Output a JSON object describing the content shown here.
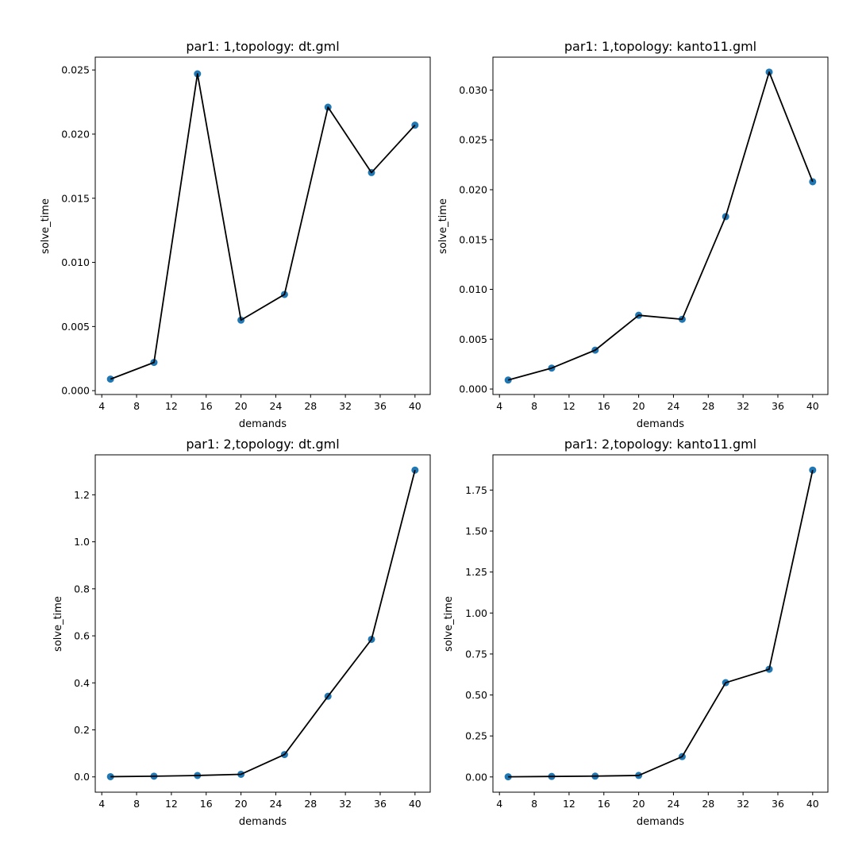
{
  "colors": {
    "line": "#000000",
    "marker": "#1f77b4",
    "frame": "#000000",
    "background": "#ffffff"
  },
  "chart_data": [
    {
      "type": "line",
      "title": "par1: 1,topology: dt.gml",
      "xlabel": "demands",
      "ylabel": "solve_time",
      "grid": false,
      "x": [
        5,
        10,
        15,
        20,
        25,
        30,
        35,
        40
      ],
      "series": [
        {
          "values": [
            0.0009,
            0.0022,
            0.0247,
            0.0055,
            0.0075,
            0.0221,
            0.017,
            0.0207
          ]
        }
      ],
      "xlim": [
        3.25,
        41.75
      ],
      "ylim": [
        -0.0003,
        0.026
      ],
      "xticks": [
        4,
        8,
        12,
        16,
        20,
        24,
        28,
        32,
        36,
        40
      ],
      "xtick_labels": [
        "4",
        "8",
        "12",
        "16",
        "20",
        "24",
        "28",
        "32",
        "36",
        "40"
      ],
      "yticks": [
        0,
        0.005,
        0.01,
        0.015,
        0.02,
        0.025
      ],
      "ytick_labels": [
        "0.000",
        "0.005",
        "0.010",
        "0.015",
        "0.020",
        "0.025"
      ]
    },
    {
      "type": "line",
      "title": "par1: 1,topology: kanto11.gml",
      "xlabel": "demands",
      "ylabel": "solve_time",
      "grid": false,
      "x": [
        5,
        10,
        15,
        20,
        25,
        30,
        35,
        40
      ],
      "series": [
        {
          "values": [
            0.0009,
            0.0021,
            0.0039,
            0.0074,
            0.007,
            0.0173,
            0.0318,
            0.0208
          ]
        }
      ],
      "xlim": [
        3.25,
        41.75
      ],
      "ylim": [
        -0.00055,
        0.0333
      ],
      "xticks": [
        4,
        8,
        12,
        16,
        20,
        24,
        28,
        32,
        36,
        40
      ],
      "xtick_labels": [
        "4",
        "8",
        "12",
        "16",
        "20",
        "24",
        "28",
        "32",
        "36",
        "40"
      ],
      "yticks": [
        0,
        0.005,
        0.01,
        0.015,
        0.02,
        0.025,
        0.03
      ],
      "ytick_labels": [
        "0.000",
        "0.005",
        "0.010",
        "0.015",
        "0.020",
        "0.025",
        "0.030"
      ]
    },
    {
      "type": "line",
      "title": "par1: 2,topology: dt.gml",
      "xlabel": "demands",
      "ylabel": "solve_time",
      "grid": false,
      "x": [
        5,
        10,
        15,
        20,
        25,
        30,
        35,
        40
      ],
      "series": [
        {
          "values": [
            0.001,
            0.003,
            0.006,
            0.011,
            0.095,
            0.343,
            0.585,
            1.305
          ]
        }
      ],
      "xlim": [
        3.25,
        41.75
      ],
      "ylim": [
        -0.065,
        1.37
      ],
      "xticks": [
        4,
        8,
        12,
        16,
        20,
        24,
        28,
        32,
        36,
        40
      ],
      "xtick_labels": [
        "4",
        "8",
        "12",
        "16",
        "20",
        "24",
        "28",
        "32",
        "36",
        "40"
      ],
      "yticks": [
        0,
        0.2,
        0.4,
        0.6,
        0.8,
        1.0,
        1.2
      ],
      "ytick_labels": [
        "0.0",
        "0.2",
        "0.4",
        "0.6",
        "0.8",
        "1.0",
        "1.2"
      ]
    },
    {
      "type": "line",
      "title": "par1: 2,topology: kanto11.gml",
      "xlabel": "demands",
      "ylabel": "solve_time",
      "grid": false,
      "x": [
        5,
        10,
        15,
        20,
        25,
        30,
        35,
        40
      ],
      "series": [
        {
          "values": [
            0.001,
            0.003,
            0.005,
            0.009,
            0.124,
            0.575,
            0.657,
            1.872
          ]
        }
      ],
      "xlim": [
        3.25,
        41.75
      ],
      "ylim": [
        -0.093,
        1.965
      ],
      "xticks": [
        4,
        8,
        12,
        16,
        20,
        24,
        28,
        32,
        36,
        40
      ],
      "xtick_labels": [
        "4",
        "8",
        "12",
        "16",
        "20",
        "24",
        "28",
        "32",
        "36",
        "40"
      ],
      "yticks": [
        0,
        0.25,
        0.5,
        0.75,
        1.0,
        1.25,
        1.5,
        1.75
      ],
      "ytick_labels": [
        "0.00",
        "0.25",
        "0.50",
        "0.75",
        "1.00",
        "1.25",
        "1.50",
        "1.75"
      ]
    }
  ]
}
